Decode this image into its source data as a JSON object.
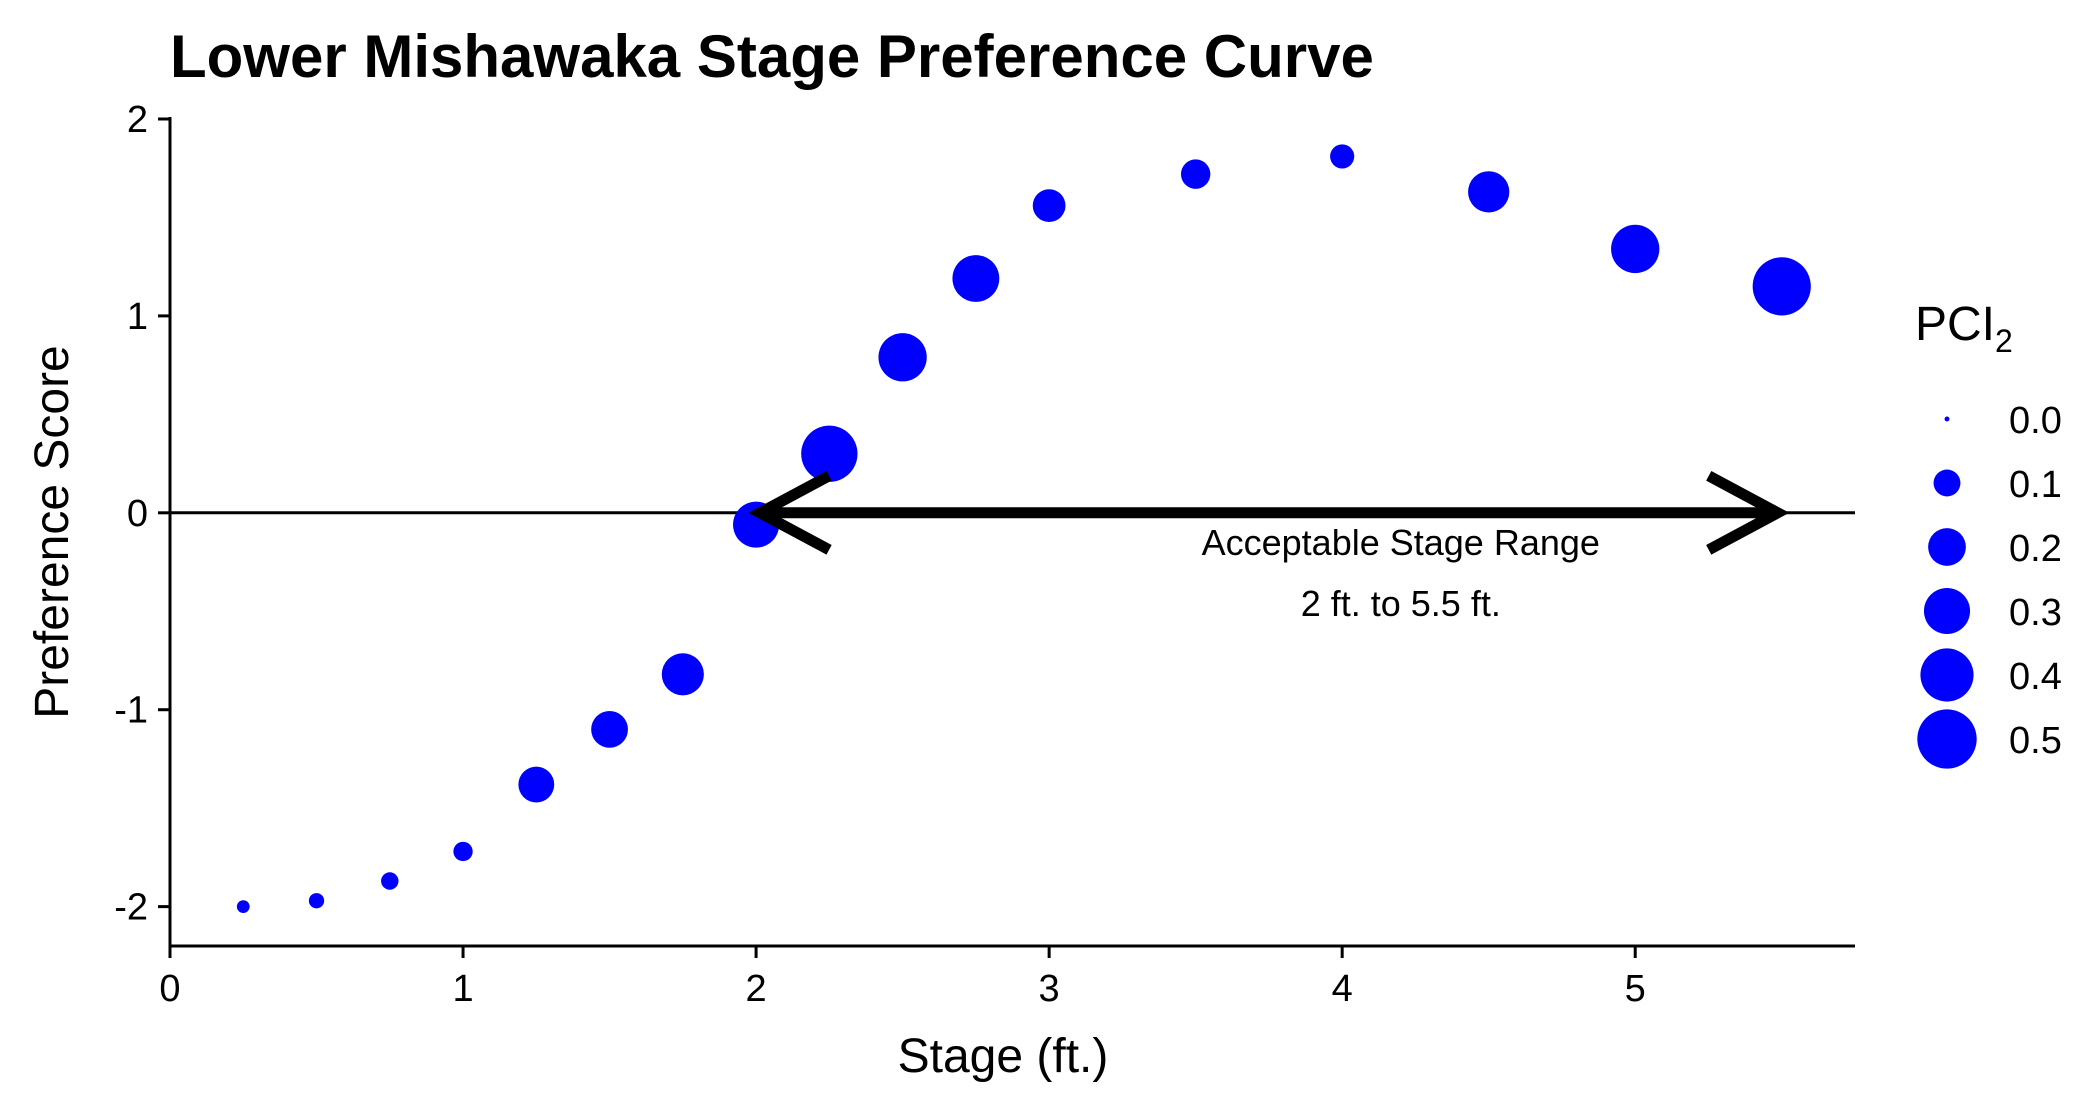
{
  "chart_data": {
    "type": "scatter",
    "title": "Lower Mishawaka Stage Preference Curve",
    "xlabel": "Stage (ft.)",
    "ylabel": "Preference Score",
    "xlim": [
      0,
      5.75
    ],
    "ylim": [
      -2.2,
      2
    ],
    "xticks": [
      0,
      1,
      2,
      3,
      4,
      5
    ],
    "yticks": [
      -2,
      -1,
      0,
      1,
      2
    ],
    "grid": false,
    "point_color": "#0000FF",
    "reference_line_y": 0,
    "points": [
      {
        "x": 0.25,
        "y": -2.0,
        "pci2": 0.02
      },
      {
        "x": 0.5,
        "y": -1.97,
        "pci2": 0.03
      },
      {
        "x": 0.75,
        "y": -1.87,
        "pci2": 0.04
      },
      {
        "x": 1.0,
        "y": -1.72,
        "pci2": 0.05
      },
      {
        "x": 1.25,
        "y": -1.38,
        "pci2": 0.18
      },
      {
        "x": 1.5,
        "y": -1.1,
        "pci2": 0.19
      },
      {
        "x": 1.75,
        "y": -0.82,
        "pci2": 0.25
      },
      {
        "x": 2.0,
        "y": -0.06,
        "pci2": 0.3
      },
      {
        "x": 2.25,
        "y": 0.3,
        "pci2": 0.45
      },
      {
        "x": 2.5,
        "y": 0.79,
        "pci2": 0.33
      },
      {
        "x": 2.75,
        "y": 1.19,
        "pci2": 0.31
      },
      {
        "x": 3.0,
        "y": 1.56,
        "pci2": 0.15
      },
      {
        "x": 3.5,
        "y": 1.72,
        "pci2": 0.12
      },
      {
        "x": 4.0,
        "y": 1.81,
        "pci2": 0.08
      },
      {
        "x": 4.5,
        "y": 1.63,
        "pci2": 0.24
      },
      {
        "x": 5.0,
        "y": 1.34,
        "pci2": 0.33
      },
      {
        "x": 5.5,
        "y": 1.15,
        "pci2": 0.48
      }
    ],
    "range_arrow": {
      "x_start": 2,
      "x_end": 5.5,
      "y": 0
    },
    "annotation": [
      "Acceptable Stage Range",
      "2 ft. to 5.5 ft."
    ],
    "legend": {
      "title": "PCI",
      "title_subscript": "2",
      "placement": "right",
      "entries": [
        {
          "label": "0.0",
          "value": 0.0
        },
        {
          "label": "0.1",
          "value": 0.1
        },
        {
          "label": "0.2",
          "value": 0.2
        },
        {
          "label": "0.3",
          "value": 0.3
        },
        {
          "label": "0.4",
          "value": 0.4
        },
        {
          "label": "0.5",
          "value": 0.5
        }
      ]
    }
  }
}
